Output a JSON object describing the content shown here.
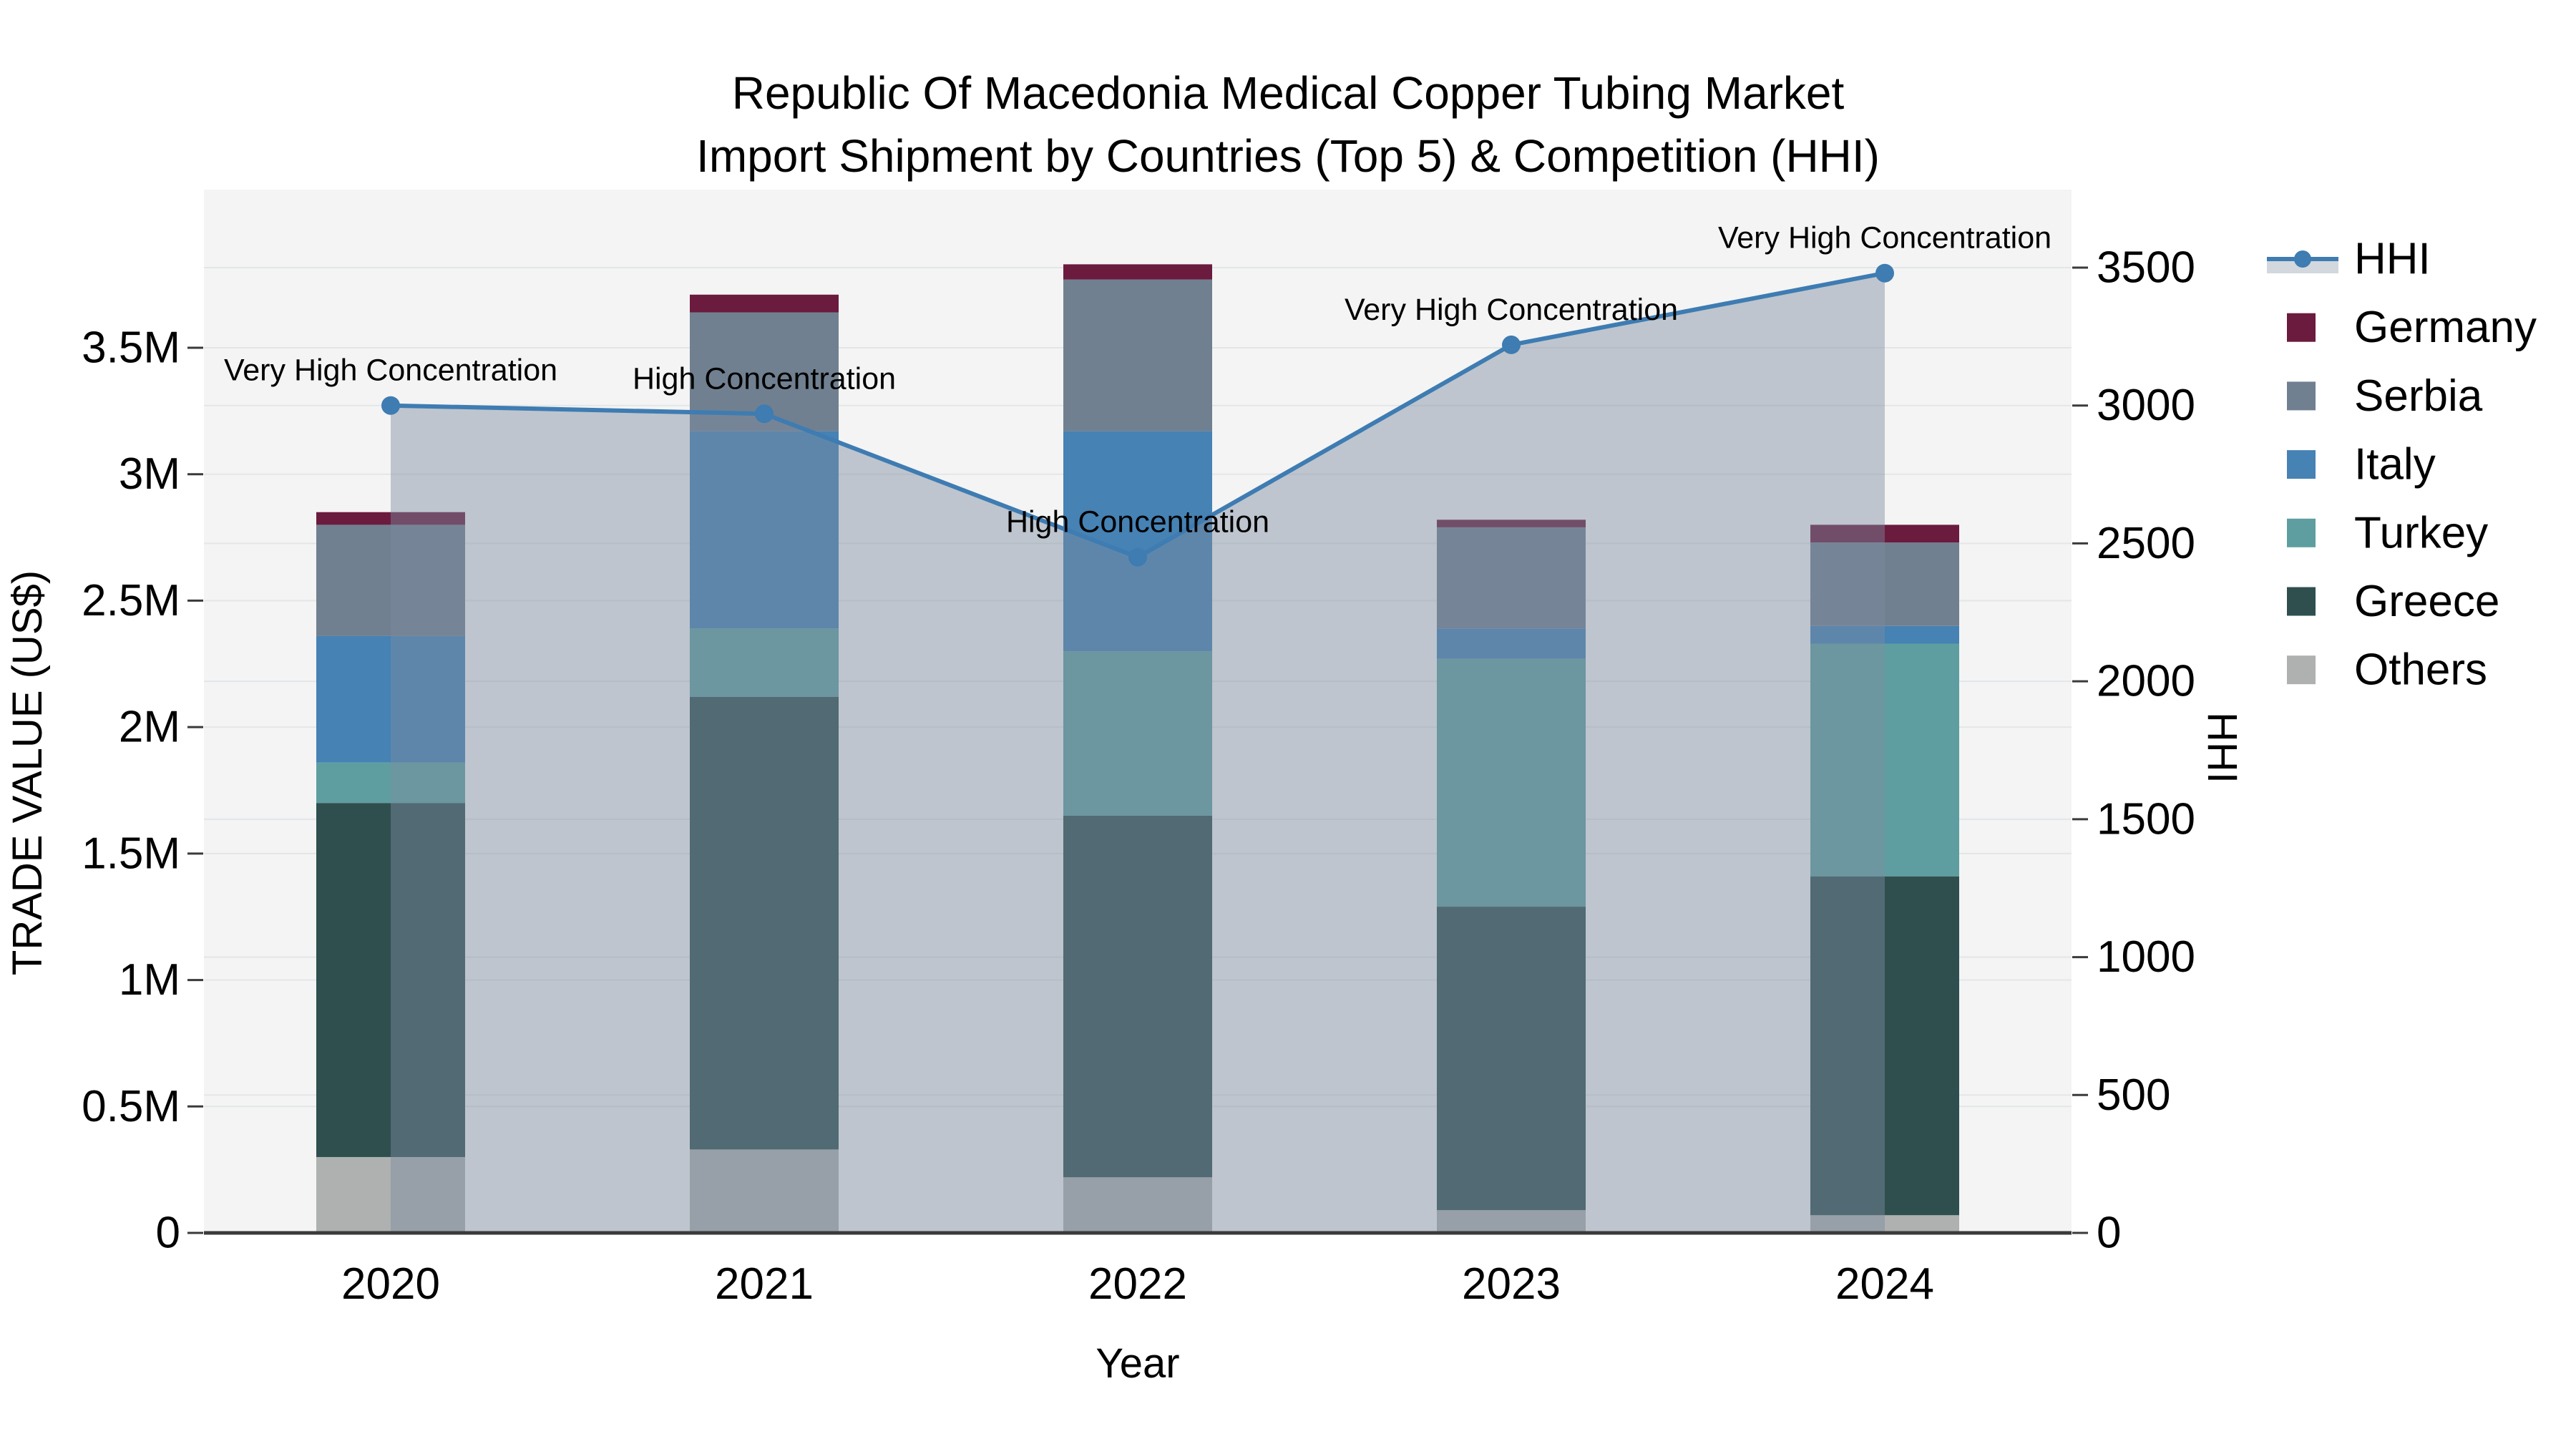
{
  "title": {
    "line1": "Republic Of Macedonia Medical Copper Tubing Market",
    "line2": "Import Shipment by Countries (Top 5) & Competition (HHI)"
  },
  "axes": {
    "x": {
      "title": "Year",
      "categories": [
        "2020",
        "2021",
        "2022",
        "2023",
        "2024"
      ]
    },
    "left": {
      "title": "TRADE VALUE (US$)",
      "max": 3.5,
      "ticks": [
        {
          "v": 0,
          "label": "0"
        },
        {
          "v": 0.5,
          "label": "0.5M"
        },
        {
          "v": 1,
          "label": "1M"
        },
        {
          "v": 1.5,
          "label": "1.5M"
        },
        {
          "v": 2,
          "label": "2M"
        },
        {
          "v": 2.5,
          "label": "2.5M"
        },
        {
          "v": 3,
          "label": "3M"
        },
        {
          "v": 3.5,
          "label": "3.5M"
        }
      ]
    },
    "right": {
      "title": "HHI",
      "max": 3500,
      "ticks": [
        {
          "v": 0,
          "label": "0"
        },
        {
          "v": 500,
          "label": "500"
        },
        {
          "v": 1000,
          "label": "1000"
        },
        {
          "v": 1500,
          "label": "1500"
        },
        {
          "v": 2000,
          "label": "2000"
        },
        {
          "v": 2500,
          "label": "2500"
        },
        {
          "v": 3000,
          "label": "3000"
        },
        {
          "v": 3500,
          "label": "3500"
        }
      ]
    }
  },
  "chart_data": {
    "type": "bar+line",
    "categories": [
      "2020",
      "2021",
      "2022",
      "2023",
      "2024"
    ],
    "bar_value_unit": "M US$",
    "stack_order_bottom_to_top": [
      "Others",
      "Greece",
      "Turkey",
      "Italy",
      "Serbia",
      "Germany"
    ],
    "series": [
      {
        "name": "Others",
        "color": "#AEB1B0",
        "values": [
          0.3,
          0.33,
          0.22,
          0.09,
          0.07
        ]
      },
      {
        "name": "Greece",
        "color": "#2F4F4F",
        "values": [
          1.4,
          1.79,
          1.43,
          1.2,
          1.34
        ]
      },
      {
        "name": "Turkey",
        "color": "#5F9EA0",
        "values": [
          0.16,
          0.27,
          0.65,
          0.98,
          0.92
        ]
      },
      {
        "name": "Italy",
        "color": "#4682B4",
        "values": [
          0.5,
          0.78,
          0.87,
          0.12,
          0.07
        ]
      },
      {
        "name": "Serbia",
        "color": "#708090",
        "values": [
          0.44,
          0.47,
          0.6,
          0.4,
          0.33
        ]
      },
      {
        "name": "Germany",
        "color": "#6B1B3E",
        "values": [
          0.05,
          0.07,
          0.06,
          0.03,
          0.07
        ]
      }
    ],
    "line_series": {
      "name": "HHI",
      "color": "#3E7CB2",
      "area_fill": "rgba(124,140,160,0.45)",
      "values": [
        3000,
        2970,
        2450,
        3220,
        3480
      ],
      "annotations": [
        "Very High Concentration",
        "High Concentration",
        "High Concentration",
        "Very High Concentration",
        "Very High Concentration"
      ]
    },
    "ylim_left": [
      0,
      3.5
    ],
    "ylim_right": [
      0,
      3500
    ],
    "grid": true,
    "legend_position": "right"
  },
  "legend": {
    "items": [
      {
        "label": "HHI",
        "type": "line"
      },
      {
        "label": "Germany",
        "type": "swatch"
      },
      {
        "label": "Serbia",
        "type": "swatch"
      },
      {
        "label": "Italy",
        "type": "swatch"
      },
      {
        "label": "Turkey",
        "type": "swatch"
      },
      {
        "label": "Greece",
        "type": "swatch"
      },
      {
        "label": "Others",
        "type": "swatch"
      }
    ],
    "band_color": "#D2D8DE"
  },
  "colors": {
    "plot_bg": "#F4F4F4",
    "grid": "#E3E6E8",
    "axis": "#3A3A3A",
    "text": "#000000"
  }
}
